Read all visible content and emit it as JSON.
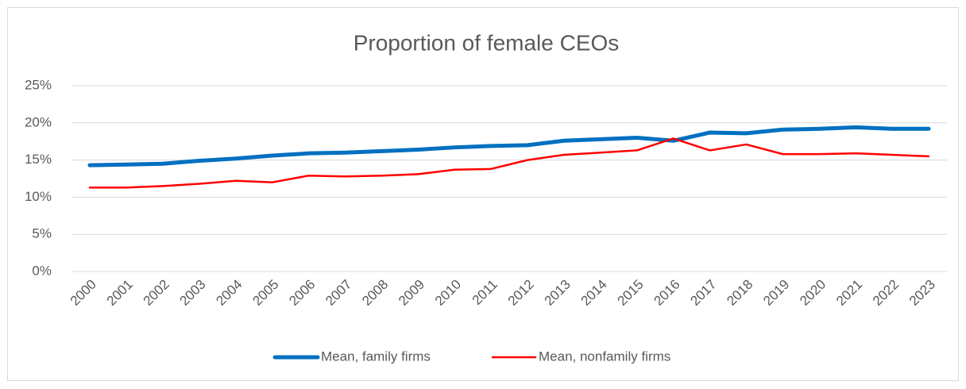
{
  "chart_data": {
    "type": "line",
    "title": "Proportion of female CEOs",
    "categories": [
      "2000",
      "2001",
      "2002",
      "2003",
      "2004",
      "2005",
      "2006",
      "2007",
      "2008",
      "2009",
      "2010",
      "2011",
      "2012",
      "2013",
      "2014",
      "2015",
      "2016",
      "2017",
      "2018",
      "2019",
      "2020",
      "2021",
      "2022",
      "2023"
    ],
    "series": [
      {
        "name": "Mean, family firms",
        "color": "#0070c0",
        "values": [
          14.3,
          14.4,
          14.5,
          14.9,
          15.2,
          15.6,
          15.9,
          16.0,
          16.2,
          16.4,
          16.7,
          16.9,
          17.0,
          17.6,
          17.8,
          18.0,
          17.6,
          18.7,
          18.6,
          19.1,
          19.2,
          19.4,
          19.2,
          19.2
        ]
      },
      {
        "name": "Mean, nonfamily firms",
        "color": "#ff0000",
        "values": [
          11.3,
          11.3,
          11.5,
          11.8,
          12.2,
          12.0,
          12.9,
          12.8,
          12.9,
          13.1,
          13.7,
          13.8,
          15.0,
          15.7,
          16.0,
          16.3,
          17.9,
          16.3,
          17.1,
          15.8,
          15.8,
          15.9,
          15.7,
          15.5
        ]
      }
    ],
    "ylim": [
      0,
      25
    ],
    "yticks": [
      {
        "value": 0,
        "label": "0%"
      },
      {
        "value": 5,
        "label": "5%"
      },
      {
        "value": 10,
        "label": "10%"
      },
      {
        "value": 15,
        "label": "15%"
      },
      {
        "value": 20,
        "label": "20%"
      },
      {
        "value": 25,
        "label": "25%"
      }
    ],
    "grid": true,
    "legend": "bottom"
  }
}
